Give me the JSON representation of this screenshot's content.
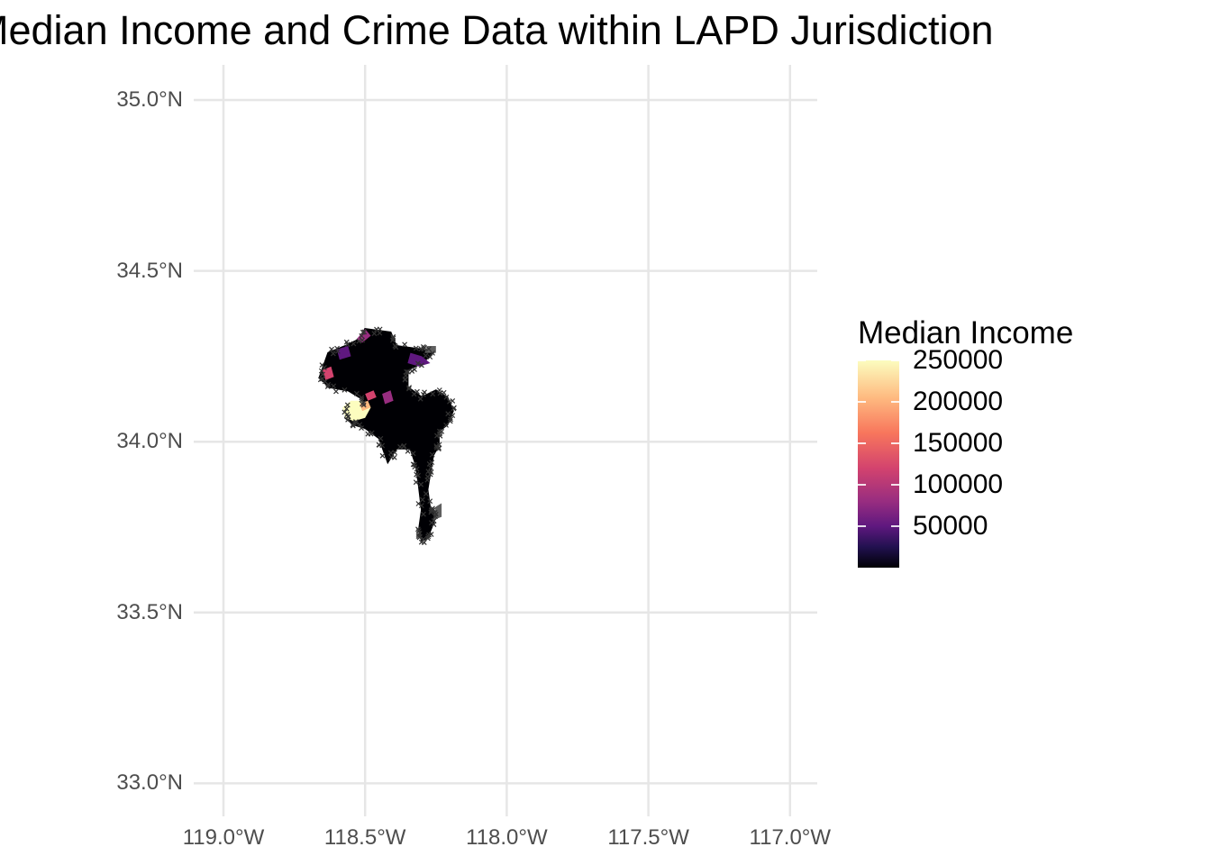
{
  "chart_data": {
    "type": "map",
    "title": "Median Income and Crime Data within LAPD Jurisdiction",
    "x_axis": {
      "tick_labels": [
        "119.0°W",
        "118.5°W",
        "118.0°W",
        "117.5°W",
        "117.0°W"
      ],
      "tick_values": [
        -119.0,
        -118.5,
        -118.0,
        -117.5,
        -117.0
      ],
      "range": [
        -119.1,
        -116.9
      ]
    },
    "y_axis": {
      "tick_labels": [
        "35.0°N",
        "34.5°N",
        "34.0°N",
        "33.5°N",
        "33.0°N"
      ],
      "tick_values": [
        35.0,
        34.5,
        34.0,
        33.5,
        33.0
      ],
      "range": [
        32.95,
        35.05
      ]
    },
    "grid": true,
    "legend": {
      "title": "Median Income",
      "placement": "right",
      "labels": [
        "250000",
        "200000",
        "150000",
        "100000",
        "50000"
      ],
      "values": [
        250000,
        200000,
        150000,
        100000,
        50000
      ],
      "range": [
        0,
        250000
      ],
      "palette": "magma",
      "colors": [
        "#000004",
        "#221150",
        "#5f187f",
        "#982d80",
        "#d3436e",
        "#f8765c",
        "#feba80",
        "#fcfdbf"
      ]
    },
    "layers": [
      {
        "kind": "polygons",
        "description_colour": "#000000",
        "fill_by": "Median Income"
      },
      {
        "kind": "points",
        "marker": "x",
        "color": "#000000"
      }
    ]
  }
}
